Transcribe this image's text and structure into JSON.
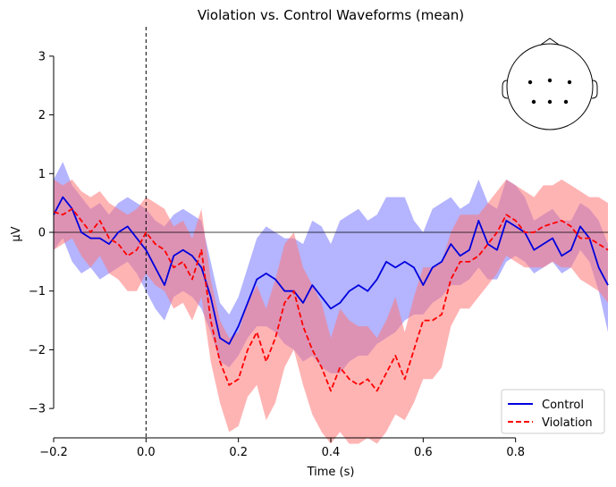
{
  "chart_data": {
    "type": "line",
    "title": "Violation vs. Control Waveforms (mean)",
    "xlabel": "Time (s)",
    "ylabel": "µV",
    "xlim": [
      -0.2,
      1.0
    ],
    "ylim": [
      -3.5,
      3.5
    ],
    "xticks": [
      -0.2,
      0.0,
      0.2,
      0.4,
      0.6,
      0.8
    ],
    "xtick_labels": [
      "−0.2",
      "0.0",
      "0.2",
      "0.4",
      "0.6",
      "0.8"
    ],
    "yticks": [
      -3,
      -2,
      -1,
      0,
      1,
      2,
      3
    ],
    "ytick_labels": [
      "−3",
      "−2",
      "−1",
      "0",
      "1",
      "2",
      "3"
    ],
    "stimulus_onset_line": 0.0,
    "zero_line": 0.0,
    "legend_position": "lower-right",
    "colors": {
      "control": "#0000dd",
      "violation": "#ff0000",
      "control_band": "#7777ff",
      "violation_band": "#ff7777"
    },
    "series": [
      {
        "name": "Control",
        "style": "solid",
        "x": [
          -0.2,
          -0.18,
          -0.16,
          -0.14,
          -0.12,
          -0.1,
          -0.08,
          -0.06,
          -0.04,
          -0.02,
          0.0,
          0.02,
          0.04,
          0.06,
          0.08,
          0.1,
          0.12,
          0.14,
          0.16,
          0.18,
          0.2,
          0.22,
          0.24,
          0.26,
          0.28,
          0.3,
          0.32,
          0.34,
          0.36,
          0.38,
          0.4,
          0.42,
          0.44,
          0.46,
          0.48,
          0.5,
          0.52,
          0.54,
          0.56,
          0.58,
          0.6,
          0.62,
          0.64,
          0.66,
          0.68,
          0.7,
          0.72,
          0.74,
          0.76,
          0.78,
          0.8,
          0.82,
          0.84,
          0.86,
          0.88,
          0.9,
          0.92,
          0.94,
          0.96,
          0.98,
          1.0
        ],
        "values": [
          0.3,
          0.6,
          0.4,
          0.0,
          -0.1,
          -0.1,
          -0.2,
          0.0,
          0.1,
          -0.1,
          -0.3,
          -0.6,
          -0.9,
          -0.4,
          -0.3,
          -0.4,
          -0.6,
          -1.1,
          -1.8,
          -1.9,
          -1.6,
          -1.2,
          -0.8,
          -0.7,
          -0.8,
          -1.0,
          -1.0,
          -1.2,
          -0.9,
          -1.1,
          -1.3,
          -1.2,
          -1.0,
          -0.9,
          -1.0,
          -0.8,
          -0.5,
          -0.6,
          -0.5,
          -0.6,
          -0.9,
          -0.6,
          -0.5,
          -0.2,
          -0.4,
          -0.3,
          0.2,
          -0.2,
          -0.3,
          0.2,
          0.1,
          0.0,
          -0.3,
          -0.2,
          -0.1,
          -0.4,
          -0.3,
          0.1,
          -0.1,
          -0.6,
          -0.9
        ],
        "ci_lower": [
          -0.3,
          -0.1,
          -0.5,
          -0.7,
          -0.6,
          -0.8,
          -0.7,
          -0.6,
          -0.5,
          -0.7,
          -1.0,
          -1.3,
          -1.5,
          -1.1,
          -1.0,
          -1.1,
          -1.3,
          -1.7,
          -2.2,
          -2.3,
          -2.1,
          -1.8,
          -1.6,
          -1.6,
          -1.7,
          -1.9,
          -2.0,
          -2.2,
          -2.1,
          -2.3,
          -2.4,
          -2.4,
          -2.2,
          -2.1,
          -2.1,
          -1.9,
          -1.8,
          -1.7,
          -1.5,
          -1.4,
          -1.4,
          -1.2,
          -1.1,
          -0.9,
          -0.9,
          -0.8,
          -0.6,
          -0.8,
          -0.8,
          -0.5,
          -0.4,
          -0.5,
          -0.7,
          -0.6,
          -0.5,
          -0.7,
          -0.6,
          -0.3,
          -0.5,
          -1.0,
          -1.7
        ],
        "ci_upper": [
          0.9,
          1.2,
          0.8,
          0.6,
          0.4,
          0.5,
          0.3,
          0.5,
          0.6,
          0.5,
          0.4,
          0.2,
          0.1,
          0.3,
          0.4,
          0.3,
          0.2,
          -0.5,
          -1.2,
          -1.4,
          -1.1,
          -0.6,
          -0.1,
          0.1,
          0.0,
          -0.1,
          -0.1,
          -0.2,
          0.2,
          0.1,
          -0.2,
          0.2,
          0.3,
          0.4,
          0.2,
          0.3,
          0.6,
          0.6,
          0.6,
          0.2,
          0.0,
          0.4,
          0.5,
          0.6,
          0.4,
          0.5,
          0.9,
          0.5,
          0.4,
          0.9,
          0.8,
          0.6,
          0.2,
          0.3,
          0.4,
          0.2,
          0.2,
          0.5,
          0.4,
          0.2,
          -0.2
        ]
      },
      {
        "name": "Violation",
        "style": "dashed",
        "x": [
          -0.2,
          -0.18,
          -0.16,
          -0.14,
          -0.12,
          -0.1,
          -0.08,
          -0.06,
          -0.04,
          -0.02,
          0.0,
          0.02,
          0.04,
          0.06,
          0.08,
          0.1,
          0.12,
          0.14,
          0.16,
          0.18,
          0.2,
          0.22,
          0.24,
          0.26,
          0.28,
          0.3,
          0.32,
          0.34,
          0.36,
          0.38,
          0.4,
          0.42,
          0.44,
          0.46,
          0.48,
          0.5,
          0.52,
          0.54,
          0.56,
          0.58,
          0.6,
          0.62,
          0.64,
          0.66,
          0.68,
          0.7,
          0.72,
          0.74,
          0.76,
          0.78,
          0.8,
          0.82,
          0.84,
          0.86,
          0.88,
          0.9,
          0.92,
          0.94,
          0.96,
          0.98,
          1.0
        ],
        "values": [
          0.35,
          0.3,
          0.4,
          0.2,
          0.0,
          0.2,
          -0.1,
          -0.2,
          -0.4,
          -0.3,
          0.0,
          -0.2,
          -0.3,
          -0.6,
          -0.5,
          -0.8,
          -0.3,
          -1.5,
          -2.2,
          -2.6,
          -2.5,
          -2.0,
          -1.7,
          -2.2,
          -1.8,
          -1.2,
          -1.0,
          -1.6,
          -2.0,
          -2.3,
          -2.7,
          -2.3,
          -2.5,
          -2.6,
          -2.5,
          -2.7,
          -2.4,
          -2.1,
          -2.5,
          -2.0,
          -1.5,
          -1.5,
          -1.4,
          -0.8,
          -0.5,
          -0.5,
          -0.4,
          -0.2,
          0.0,
          0.3,
          0.2,
          0.0,
          0.0,
          0.1,
          0.15,
          0.2,
          0.1,
          -0.1,
          -0.1,
          -0.2,
          -0.3
        ],
        "ci_lower": [
          -0.3,
          -0.2,
          -0.1,
          -0.4,
          -0.6,
          -0.4,
          -0.7,
          -0.8,
          -1.0,
          -1.0,
          -0.7,
          -0.9,
          -1.0,
          -1.3,
          -1.2,
          -1.5,
          -1.1,
          -2.2,
          -2.9,
          -3.4,
          -3.3,
          -2.8,
          -2.6,
          -3.2,
          -2.9,
          -2.3,
          -2.0,
          -2.6,
          -3.1,
          -3.4,
          -3.6,
          -3.4,
          -3.6,
          -3.6,
          -3.5,
          -3.6,
          -3.4,
          -3.1,
          -3.2,
          -2.9,
          -2.5,
          -2.5,
          -2.3,
          -1.6,
          -1.3,
          -1.3,
          -1.1,
          -0.9,
          -0.7,
          -0.4,
          -0.5,
          -0.6,
          -0.6,
          -0.6,
          -0.5,
          -0.6,
          -0.6,
          -0.8,
          -0.9,
          -1.0,
          -1.2
        ],
        "ci_upper": [
          0.9,
          0.8,
          0.9,
          0.7,
          0.6,
          0.7,
          0.5,
          0.4,
          0.3,
          0.4,
          0.6,
          0.5,
          0.4,
          0.1,
          0.2,
          -0.1,
          0.4,
          -0.8,
          -1.5,
          -1.8,
          -1.7,
          -1.2,
          -0.9,
          -1.3,
          -0.8,
          -0.2,
          0.0,
          -0.6,
          -0.9,
          -1.2,
          -1.8,
          -1.3,
          -1.5,
          -1.6,
          -1.6,
          -1.8,
          -1.5,
          -1.1,
          -1.7,
          -1.1,
          -0.6,
          -0.6,
          -0.5,
          0.0,
          0.3,
          0.3,
          0.3,
          0.5,
          0.7,
          0.9,
          0.8,
          0.7,
          0.6,
          0.8,
          0.8,
          0.9,
          0.8,
          0.7,
          0.6,
          0.6,
          0.5
        ]
      }
    ]
  }
}
